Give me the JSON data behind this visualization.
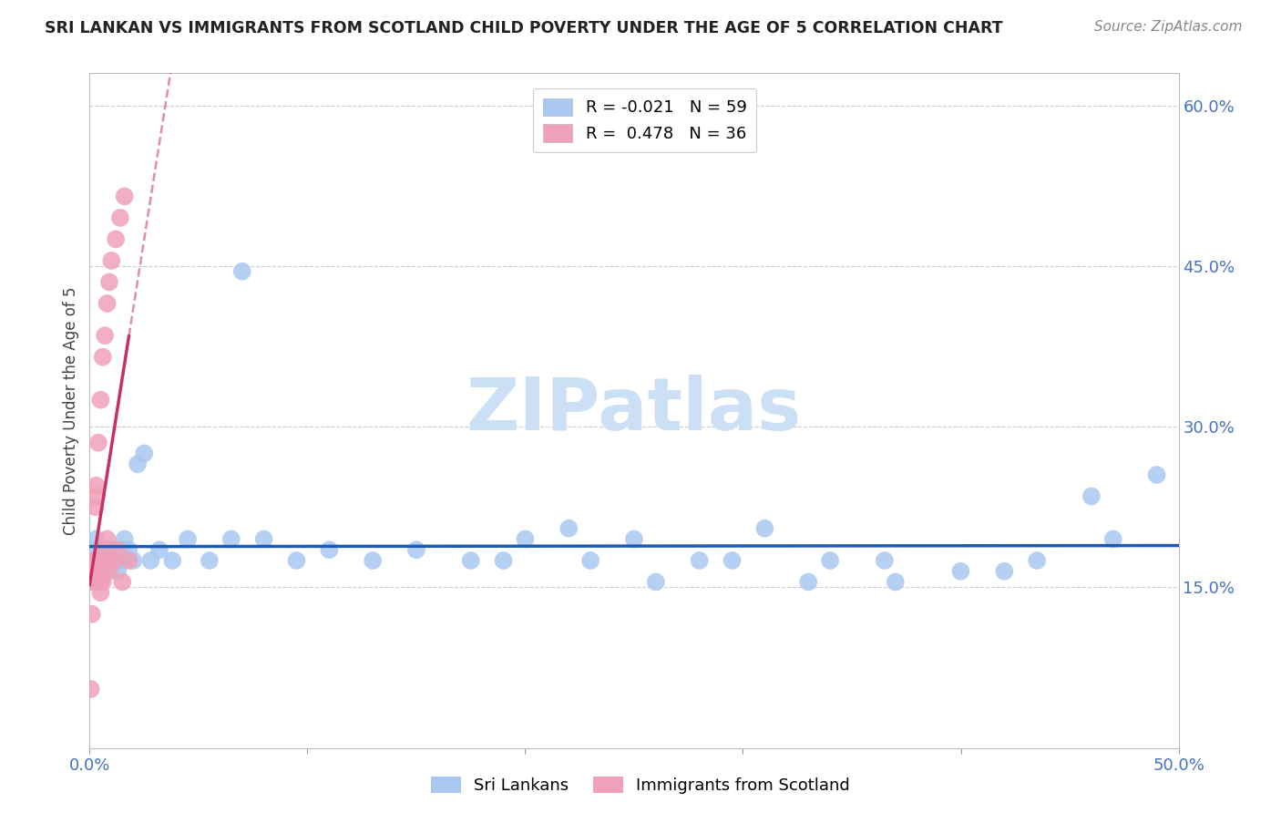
{
  "title": "SRI LANKAN VS IMMIGRANTS FROM SCOTLAND CHILD POVERTY UNDER THE AGE OF 5 CORRELATION CHART",
  "source": "Source: ZipAtlas.com",
  "ylabel": "Child Poverty Under the Age of 5",
  "series1_color": "#a8c8f0",
  "series2_color": "#f0a0b8",
  "trendline1_color": "#1a5ab8",
  "trendline2_color": "#c83060",
  "watermark_text": "ZIPatlas",
  "watermark_color": "#cce0f5",
  "legend1_label": "R = -0.021   N = 59",
  "legend2_label": "R =  0.478   N = 36",
  "legend_label1": "Sri Lankans",
  "legend_label2": "Immigrants from Scotland",
  "xmin": 0.0,
  "xmax": 0.5,
  "ymin": 0.0,
  "ymax": 0.63,
  "ytick_vals": [
    0.15,
    0.3,
    0.45,
    0.6
  ],
  "ytick_labels": [
    "15.0%",
    "30.0%",
    "45.0%",
    "60.0%"
  ],
  "xtick_vals": [
    0.0,
    0.1,
    0.2,
    0.3,
    0.4,
    0.5
  ],
  "xtick_show": [
    0.0,
    0.5
  ],
  "sri_lankans_x": [
    0.002,
    0.003,
    0.003,
    0.004,
    0.004,
    0.005,
    0.005,
    0.006,
    0.006,
    0.007,
    0.007,
    0.008,
    0.008,
    0.009,
    0.009,
    0.01,
    0.01,
    0.011,
    0.012,
    0.013,
    0.014,
    0.015,
    0.016,
    0.018,
    0.02,
    0.022,
    0.025,
    0.028,
    0.032,
    0.038,
    0.045,
    0.055,
    0.065,
    0.08,
    0.095,
    0.11,
    0.13,
    0.15,
    0.175,
    0.2,
    0.23,
    0.26,
    0.295,
    0.33,
    0.365,
    0.4,
    0.435,
    0.47,
    0.19,
    0.22,
    0.25,
    0.28,
    0.31,
    0.34,
    0.37,
    0.42,
    0.46,
    0.49,
    0.07
  ],
  "sri_lankans_y": [
    0.185,
    0.195,
    0.175,
    0.17,
    0.16,
    0.18,
    0.165,
    0.175,
    0.185,
    0.165,
    0.175,
    0.185,
    0.165,
    0.18,
    0.175,
    0.17,
    0.185,
    0.175,
    0.185,
    0.165,
    0.175,
    0.185,
    0.195,
    0.185,
    0.175,
    0.265,
    0.275,
    0.175,
    0.185,
    0.175,
    0.195,
    0.175,
    0.195,
    0.195,
    0.175,
    0.185,
    0.175,
    0.185,
    0.175,
    0.195,
    0.175,
    0.155,
    0.175,
    0.155,
    0.175,
    0.165,
    0.175,
    0.195,
    0.175,
    0.205,
    0.195,
    0.175,
    0.205,
    0.175,
    0.155,
    0.165,
    0.235,
    0.255,
    0.445
  ],
  "scotland_x": [
    0.0005,
    0.001,
    0.0015,
    0.002,
    0.002,
    0.0025,
    0.003,
    0.003,
    0.003,
    0.004,
    0.004,
    0.005,
    0.005,
    0.005,
    0.006,
    0.006,
    0.007,
    0.007,
    0.008,
    0.008,
    0.009,
    0.009,
    0.01,
    0.011,
    0.012,
    0.013,
    0.014,
    0.015,
    0.016,
    0.018,
    0.002,
    0.003,
    0.004,
    0.005,
    0.006,
    0.007
  ],
  "scotland_y": [
    0.055,
    0.125,
    0.155,
    0.165,
    0.155,
    0.225,
    0.235,
    0.245,
    0.165,
    0.285,
    0.175,
    0.325,
    0.175,
    0.155,
    0.365,
    0.165,
    0.385,
    0.185,
    0.415,
    0.195,
    0.435,
    0.165,
    0.455,
    0.175,
    0.475,
    0.185,
    0.495,
    0.155,
    0.515,
    0.175,
    0.175,
    0.155,
    0.165,
    0.145,
    0.155,
    0.175
  ]
}
